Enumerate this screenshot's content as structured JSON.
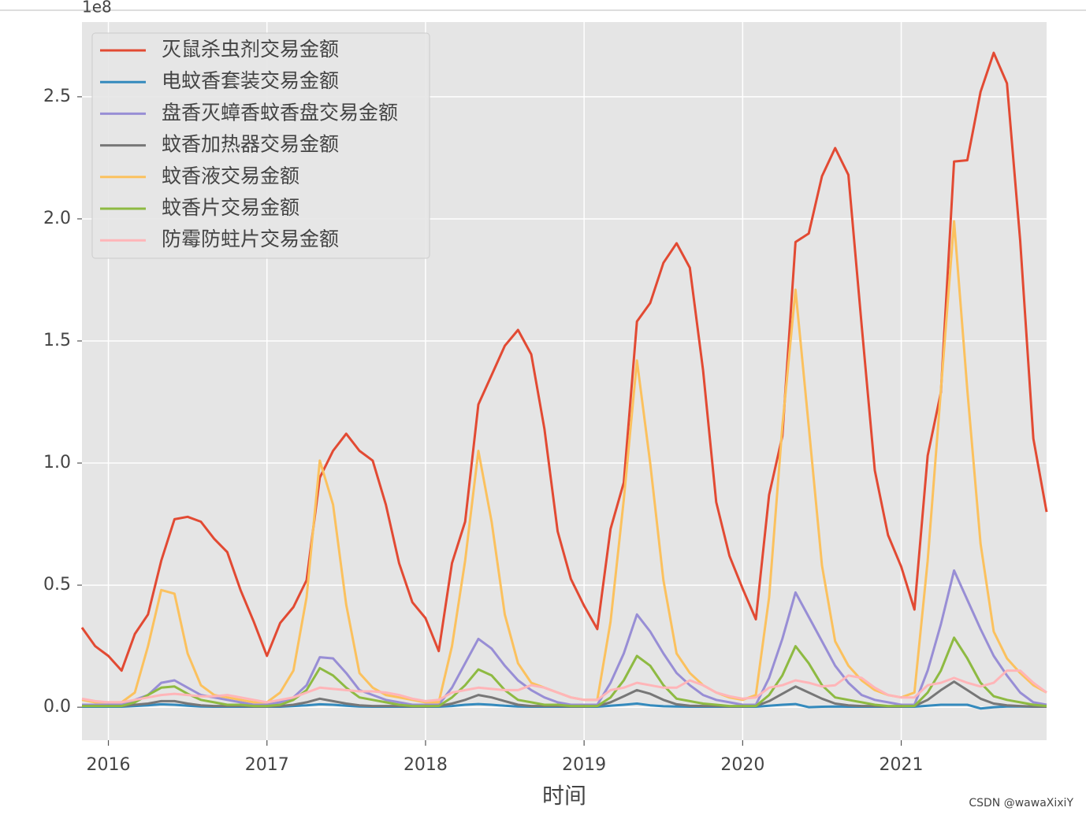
{
  "chart_data": {
    "type": "line",
    "offset_label": "1e8",
    "x_label": "时间",
    "watermark": "CSDN @wawaXixiY",
    "legend": "upper left",
    "grid": true,
    "categories": [
      null,
      null,
      "2016",
      null,
      null,
      null,
      null,
      null,
      null,
      null,
      null,
      null,
      null,
      null,
      "2017",
      null,
      null,
      null,
      null,
      null,
      null,
      null,
      null,
      null,
      null,
      null,
      "2018",
      null,
      null,
      null,
      null,
      null,
      null,
      null,
      null,
      null,
      null,
      null,
      "2019",
      null,
      null,
      null,
      null,
      null,
      null,
      null,
      null,
      null,
      null,
      null,
      "2020",
      null,
      null,
      null,
      null,
      null,
      null,
      null,
      null,
      null,
      null,
      null,
      "2021",
      null,
      null,
      null,
      null,
      null,
      null,
      null,
      null,
      null,
      null,
      null
    ],
    "ylim": [
      -0.135,
      2.806
    ],
    "yticks": [
      {
        "value": 0,
        "label": "0.0"
      },
      0.5,
      {
        "value": 1,
        "label": "1.0"
      },
      1.5,
      {
        "value": 2,
        "label": "2.0"
      },
      2.5
    ],
    "series": [
      {
        "name": "灭鼠杀虫剂交易金额",
        "color": "#E24A33",
        "values": [
          0.326,
          0.25,
          0.21,
          0.15,
          0.3,
          0.38,
          0.6,
          0.77,
          0.78,
          0.76,
          0.69,
          0.635,
          0.48,
          0.35,
          0.21,
          0.345,
          0.41,
          0.52,
          0.94,
          1.05,
          1.12,
          1.05,
          1.01,
          0.83,
          0.59,
          0.43,
          0.365,
          0.23,
          0.59,
          0.76,
          1.24,
          1.36,
          1.48,
          1.545,
          1.445,
          1.14,
          0.72,
          0.525,
          0.415,
          0.32,
          0.73,
          0.92,
          1.58,
          1.655,
          1.82,
          1.9,
          1.8,
          1.38,
          0.84,
          0.62,
          0.485,
          0.36,
          0.87,
          1.11,
          1.905,
          1.94,
          2.175,
          2.29,
          2.18,
          1.565,
          0.97,
          0.705,
          0.575,
          0.4,
          1.03,
          1.29,
          2.235,
          2.24,
          2.52,
          2.68,
          2.555,
          1.91,
          1.1,
          0.8
        ]
      },
      {
        "name": "电蚊香套装交易金额",
        "color": "#348ABD",
        "values": [
          0.002,
          0.002,
          0.002,
          0.002,
          0.005,
          0.008,
          0.012,
          0.01,
          0.006,
          0.003,
          0.002,
          0.002,
          0.002,
          0.002,
          0.002,
          0.002,
          0.005,
          0.008,
          0.012,
          0.01,
          0.006,
          0.003,
          0.002,
          0.002,
          0.002,
          0.002,
          0.002,
          0.002,
          0.005,
          0.01,
          0.013,
          0.01,
          0.006,
          0.003,
          0.002,
          0.002,
          0.002,
          0.002,
          0.002,
          0.002,
          0.006,
          0.01,
          0.015,
          0.008,
          0.004,
          0.003,
          0.002,
          0.002,
          0.002,
          0.002,
          0.002,
          0.002,
          0.006,
          0.01,
          0.013,
          0.0,
          0.002,
          0.003,
          0.002,
          0.002,
          0.002,
          0.002,
          0.002,
          0.002,
          0.006,
          0.01,
          0.01,
          0.01,
          -0.005,
          0.0,
          0.003,
          0.003,
          0.002,
          0.002
        ]
      },
      {
        "name": "盘香灭蟑香蚊香盘交易金额",
        "color": "#988ED5",
        "values": [
          0.01,
          0.01,
          0.01,
          0.01,
          0.03,
          0.05,
          0.1,
          0.11,
          0.08,
          0.05,
          0.04,
          0.03,
          0.02,
          0.01,
          0.01,
          0.02,
          0.04,
          0.09,
          0.205,
          0.2,
          0.14,
          0.07,
          0.05,
          0.03,
          0.02,
          0.01,
          0.01,
          0.01,
          0.08,
          0.18,
          0.28,
          0.24,
          0.17,
          0.11,
          0.07,
          0.04,
          0.02,
          0.01,
          0.01,
          0.01,
          0.1,
          0.22,
          0.38,
          0.31,
          0.22,
          0.14,
          0.09,
          0.05,
          0.03,
          0.02,
          0.01,
          0.01,
          0.12,
          0.28,
          0.47,
          0.37,
          0.27,
          0.17,
          0.1,
          0.05,
          0.03,
          0.02,
          0.01,
          0.01,
          0.15,
          0.34,
          0.56,
          0.44,
          0.32,
          0.21,
          0.13,
          0.06,
          0.02,
          0.01
        ]
      },
      {
        "name": "蚊香加热器交易金额",
        "color": "#777777",
        "values": [
          0.005,
          0.005,
          0.005,
          0.005,
          0.01,
          0.015,
          0.025,
          0.025,
          0.015,
          0.008,
          0.005,
          0.005,
          0.005,
          0.003,
          0.003,
          0.005,
          0.01,
          0.02,
          0.035,
          0.025,
          0.015,
          0.008,
          0.005,
          0.005,
          0.005,
          0.003,
          0.003,
          0.005,
          0.015,
          0.03,
          0.05,
          0.04,
          0.025,
          0.01,
          0.005,
          0.005,
          0.005,
          0.003,
          0.003,
          0.005,
          0.02,
          0.045,
          0.07,
          0.055,
          0.03,
          0.012,
          0.006,
          0.005,
          0.005,
          0.003,
          0.003,
          0.005,
          0.025,
          0.055,
          0.085,
          0.06,
          0.035,
          0.015,
          0.008,
          0.005,
          0.005,
          0.003,
          0.003,
          0.005,
          0.03,
          0.07,
          0.105,
          0.07,
          0.035,
          0.015,
          0.008,
          0.005,
          0.003,
          0.002
        ]
      },
      {
        "name": "蚊香液交易金额",
        "color": "#FBC15E",
        "values": [
          0.03,
          0.02,
          0.02,
          0.02,
          0.06,
          0.25,
          0.48,
          0.465,
          0.22,
          0.09,
          0.05,
          0.04,
          0.03,
          0.02,
          0.02,
          0.06,
          0.15,
          0.45,
          1.01,
          0.83,
          0.42,
          0.14,
          0.08,
          0.05,
          0.04,
          0.03,
          0.02,
          0.02,
          0.25,
          0.6,
          1.05,
          0.76,
          0.38,
          0.18,
          0.1,
          0.08,
          0.06,
          0.04,
          0.03,
          0.03,
          0.35,
          0.85,
          1.42,
          1.0,
          0.52,
          0.22,
          0.14,
          0.09,
          0.06,
          0.04,
          0.03,
          0.05,
          0.45,
          1.15,
          1.71,
          1.15,
          0.58,
          0.27,
          0.17,
          0.11,
          0.07,
          0.05,
          0.04,
          0.06,
          0.6,
          1.3,
          1.99,
          1.3,
          0.67,
          0.31,
          0.2,
          0.14,
          0.09,
          0.06
        ]
      },
      {
        "name": "蚊香片交易金额",
        "color": "#8EBA42",
        "values": [
          0.005,
          0.005,
          0.005,
          0.005,
          0.02,
          0.05,
          0.08,
          0.085,
          0.055,
          0.03,
          0.02,
          0.01,
          0.01,
          0.005,
          0.005,
          0.01,
          0.03,
          0.07,
          0.16,
          0.13,
          0.08,
          0.04,
          0.03,
          0.02,
          0.01,
          0.005,
          0.005,
          0.005,
          0.04,
          0.09,
          0.155,
          0.13,
          0.07,
          0.03,
          0.02,
          0.01,
          0.01,
          0.005,
          0.005,
          0.005,
          0.04,
          0.11,
          0.21,
          0.17,
          0.09,
          0.035,
          0.025,
          0.015,
          0.01,
          0.005,
          0.005,
          0.005,
          0.05,
          0.13,
          0.25,
          0.18,
          0.09,
          0.04,
          0.03,
          0.02,
          0.01,
          0.005,
          0.005,
          0.005,
          0.06,
          0.15,
          0.285,
          0.2,
          0.1,
          0.045,
          0.03,
          0.02,
          0.01,
          0.005
        ]
      },
      {
        "name": "防霉防蛀片交易金额",
        "color": "#FFB5B8",
        "values": [
          0.035,
          0.025,
          0.02,
          0.02,
          0.03,
          0.04,
          0.05,
          0.055,
          0.05,
          0.045,
          0.045,
          0.05,
          0.04,
          0.03,
          0.02,
          0.03,
          0.04,
          0.06,
          0.08,
          0.075,
          0.07,
          0.065,
          0.065,
          0.06,
          0.05,
          0.035,
          0.025,
          0.03,
          0.06,
          0.07,
          0.08,
          0.075,
          0.07,
          0.07,
          0.09,
          0.08,
          0.06,
          0.04,
          0.03,
          0.03,
          0.07,
          0.08,
          0.1,
          0.09,
          0.08,
          0.08,
          0.11,
          0.09,
          0.06,
          0.045,
          0.035,
          0.04,
          0.08,
          0.09,
          0.11,
          0.1,
          0.085,
          0.09,
          0.13,
          0.12,
          0.08,
          0.05,
          0.04,
          0.04,
          0.09,
          0.1,
          0.12,
          0.1,
          0.085,
          0.1,
          0.15,
          0.15,
          0.1,
          0.06
        ]
      }
    ]
  }
}
